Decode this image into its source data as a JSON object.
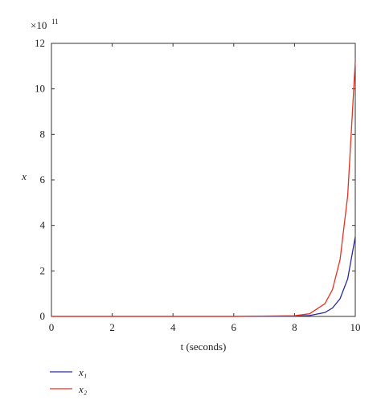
{
  "chart_data": {
    "type": "line",
    "x_label": "t (seconds)",
    "y_label": "x",
    "y_offset_base": "×10",
    "y_offset_exponent": "11",
    "x": [
      0,
      2,
      4,
      6,
      8,
      8.5,
      9,
      9.25,
      9.5,
      9.75,
      10
    ],
    "series": [
      {
        "name": "x₁",
        "color": "#2b2b9a",
        "values": [
          0,
          0,
          0,
          0,
          0.01,
          0.04,
          0.17,
          0.37,
          0.78,
          1.65,
          3.5
        ]
      },
      {
        "name": "x₂",
        "color": "#e8301f",
        "values": [
          0,
          0,
          0,
          0,
          0.03,
          0.12,
          0.56,
          1.18,
          2.5,
          5.3,
          11.2
        ]
      }
    ],
    "xlim": [
      0,
      10
    ],
    "ylim": [
      0,
      12
    ],
    "xticks": [
      0,
      2,
      4,
      6,
      8,
      10
    ],
    "yticks": [
      0,
      2,
      4,
      6,
      8,
      10,
      12
    ],
    "grid": false
  }
}
